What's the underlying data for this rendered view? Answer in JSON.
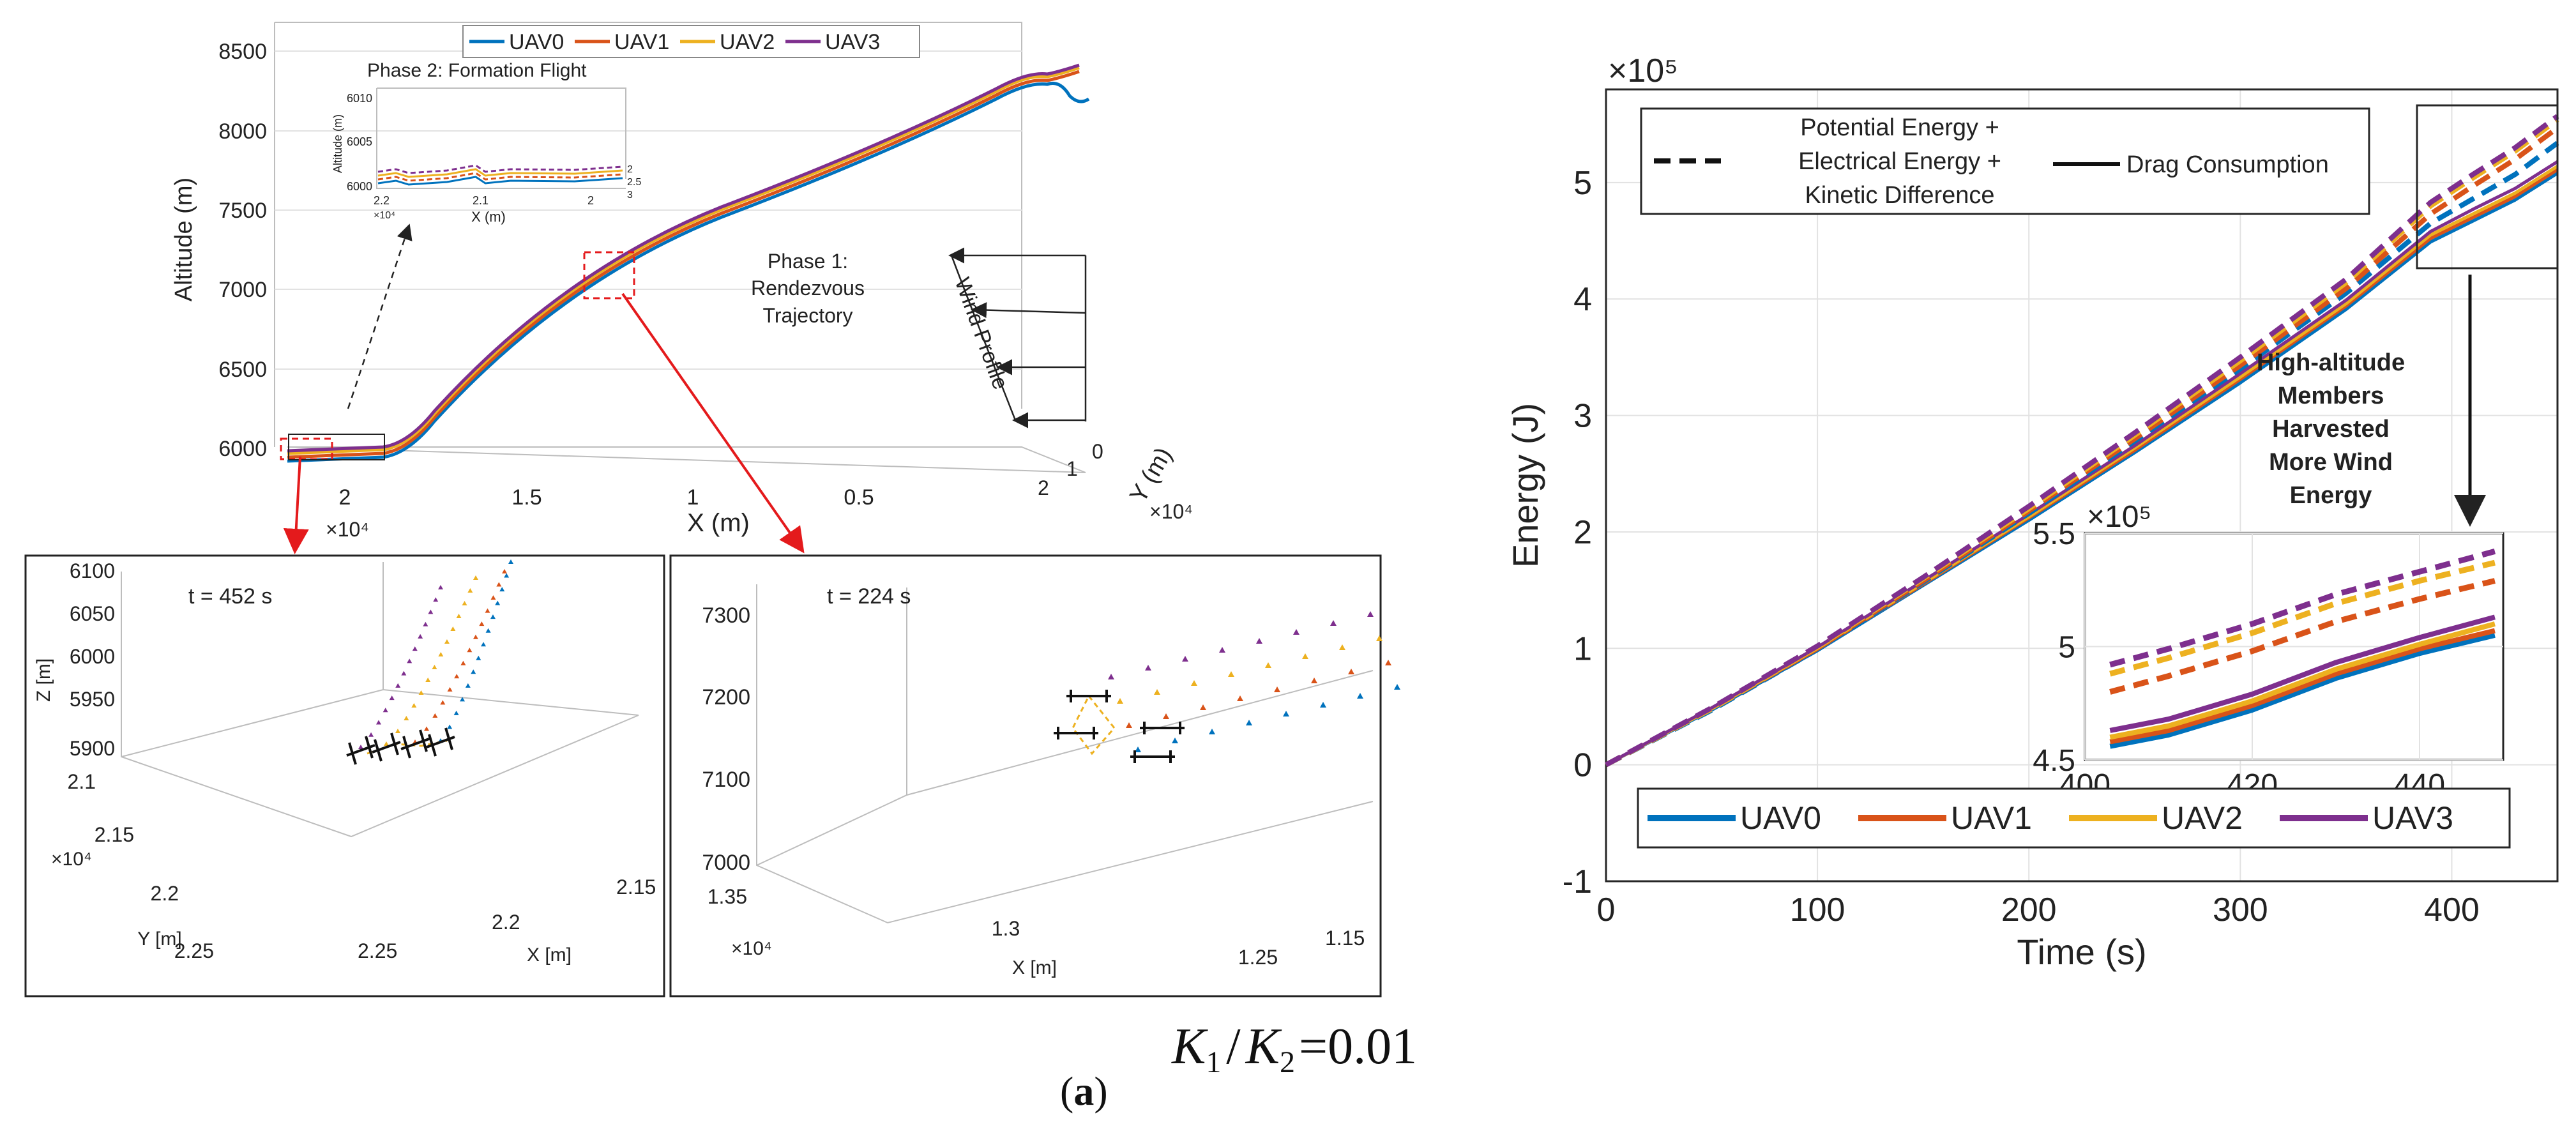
{
  "legend_uav": [
    "UAV0",
    "UAV1",
    "UAV2",
    "UAV3"
  ],
  "colors": {
    "UAV0": "#0072BD",
    "UAV1": "#D95319",
    "UAV2": "#EDB120",
    "UAV3": "#7E2F8E",
    "arrow_red": "#e41a1c"
  },
  "panel_main3d": {
    "ylabel": "Altitude (m)",
    "xlabel": "X (m)",
    "ylabel_y": "Y (m)",
    "z_ticks": [
      "8500",
      "8000",
      "7500",
      "7000",
      "6500",
      "6000"
    ],
    "x_ticks": [
      "2",
      "1.5",
      "1",
      "0.5"
    ],
    "y_ticks": [
      "0",
      "1",
      "2"
    ],
    "x_exponent": "×10⁴",
    "y_exponent": "×10⁴",
    "inset_title": "Phase 2: Formation Flight",
    "inset_ylabel": "Altitude (m)",
    "inset_xlabel": "X (m)",
    "inset_z_ticks": [
      "6010",
      "6005",
      "6000"
    ],
    "inset_x_ticks": [
      "2.2",
      "2.1",
      "2"
    ],
    "inset_y_ticks": [
      "2",
      "2.5",
      "3"
    ],
    "inset_exponent": "×10⁴",
    "phase1_label": [
      "Phase 1:",
      "Rendezvous",
      "Trajectory"
    ],
    "wind_label": "Wind Profile"
  },
  "panel_zoom1": {
    "time_label": "t = 452 s",
    "zlabel": "Z [m]",
    "ylabel": "Y [m]",
    "xlabel": "X [m]",
    "z_ticks": [
      "6100",
      "6050",
      "6000",
      "5950",
      "5900"
    ],
    "y_ticks": [
      "2.1",
      "2.15",
      "2.2",
      "2.25"
    ],
    "x_ticks": [
      "2.25",
      "2.2",
      "2.15"
    ],
    "exponent": "×10⁴"
  },
  "panel_zoom2": {
    "time_label": "t = 224 s",
    "z_ticks": [
      "7300",
      "7200",
      "7100",
      "7000"
    ],
    "x_ticks": [
      "1.35",
      "1.3",
      "1.25",
      "1.15"
    ],
    "xlabel": "X [m]",
    "exponent": "×10⁴"
  },
  "caption": {
    "letter": "a",
    "ratio_k1": "K",
    "ratio_sub1": "1",
    "ratio_slash": "/",
    "ratio_k2": "K",
    "ratio_sub2": "2",
    "ratio_value": "=0.01"
  },
  "chart_data": {
    "type": "line",
    "xlabel": "Time (s)",
    "ylabel": "Energy (J)",
    "y_exponent": "×10⁵",
    "xlim": [
      0,
      450
    ],
    "ylim": [
      -1,
      5.8
    ],
    "x_ticks": [
      0,
      100,
      200,
      300,
      400
    ],
    "y_ticks": [
      -1,
      0,
      1,
      2,
      3,
      4,
      5
    ],
    "grid": true,
    "style_legend": {
      "dashed": [
        "Potential Energy +",
        "Electrical Energy +",
        "Kinetic Difference"
      ],
      "solid": "Drag Consumption"
    },
    "annotation": [
      "High-altitude",
      "Members",
      "Harvested",
      "More Wind",
      "Energy"
    ],
    "series_legend_position": "bottom",
    "x": [
      0,
      50,
      100,
      150,
      200,
      250,
      300,
      350,
      390,
      410,
      430,
      450
    ],
    "series": [
      {
        "name": "UAV0",
        "style": "solid",
        "values": [
          0,
          0.47,
          0.98,
          1.54,
          2.1,
          2.68,
          3.28,
          3.91,
          4.49,
          4.67,
          4.85,
          5.08
        ]
      },
      {
        "name": "UAV1",
        "style": "solid",
        "values": [
          0,
          0.48,
          0.99,
          1.55,
          2.12,
          2.7,
          3.31,
          3.94,
          4.52,
          4.7,
          4.88,
          5.11
        ]
      },
      {
        "name": "UAV2",
        "style": "solid",
        "values": [
          0,
          0.48,
          1.0,
          1.56,
          2.13,
          2.72,
          3.33,
          3.96,
          4.55,
          4.73,
          4.91,
          5.14
        ]
      },
      {
        "name": "UAV3",
        "style": "solid",
        "values": [
          0,
          0.49,
          1.01,
          1.58,
          2.15,
          2.74,
          3.36,
          3.99,
          4.58,
          4.77,
          4.95,
          5.18
        ]
      },
      {
        "name": "UAV0",
        "style": "dashed",
        "values": [
          0,
          0.47,
          0.99,
          1.57,
          2.16,
          2.78,
          3.4,
          4.05,
          4.65,
          4.86,
          5.07,
          5.34
        ]
      },
      {
        "name": "UAV1",
        "style": "dashed",
        "values": [
          0,
          0.48,
          1.0,
          1.58,
          2.18,
          2.8,
          3.43,
          4.09,
          4.73,
          4.97,
          5.2,
          5.47
        ]
      },
      {
        "name": "UAV2",
        "style": "dashed",
        "values": [
          0,
          0.48,
          1.01,
          1.6,
          2.2,
          2.83,
          3.47,
          4.14,
          4.8,
          5.04,
          5.27,
          5.54
        ]
      },
      {
        "name": "UAV3",
        "style": "dashed",
        "values": [
          0,
          0.49,
          1.02,
          1.61,
          2.22,
          2.85,
          3.5,
          4.17,
          4.83,
          5.07,
          5.3,
          5.57
        ]
      }
    ],
    "inset": {
      "exponent": "×10⁵",
      "xlim": [
        400,
        450
      ],
      "ylim": [
        4.5,
        5.5
      ],
      "x_ticks": [
        400,
        420,
        440
      ],
      "y_ticks": [
        4.5,
        5,
        5.5
      ],
      "x": [
        403,
        410,
        420,
        430,
        440,
        449
      ],
      "series": [
        {
          "name": "UAV0",
          "style": "solid",
          "values": [
            4.56,
            4.61,
            4.72,
            4.86,
            4.97,
            5.05
          ]
        },
        {
          "name": "UAV1",
          "style": "solid",
          "values": [
            4.58,
            4.63,
            4.74,
            4.88,
            4.99,
            5.07
          ]
        },
        {
          "name": "UAV2",
          "style": "solid",
          "values": [
            4.6,
            4.65,
            4.76,
            4.9,
            5.01,
            5.1
          ]
        },
        {
          "name": "UAV3",
          "style": "solid",
          "values": [
            4.63,
            4.68,
            4.79,
            4.93,
            5.04,
            5.13
          ]
        },
        {
          "name": "UAV1",
          "style": "dashed",
          "values": [
            4.8,
            4.87,
            4.98,
            5.11,
            5.21,
            5.29
          ]
        },
        {
          "name": "UAV2",
          "style": "dashed",
          "values": [
            4.88,
            4.95,
            5.06,
            5.19,
            5.29,
            5.37
          ]
        },
        {
          "name": "UAV3",
          "style": "dashed",
          "values": [
            4.92,
            4.99,
            5.1,
            5.23,
            5.33,
            5.42
          ]
        }
      ]
    }
  }
}
